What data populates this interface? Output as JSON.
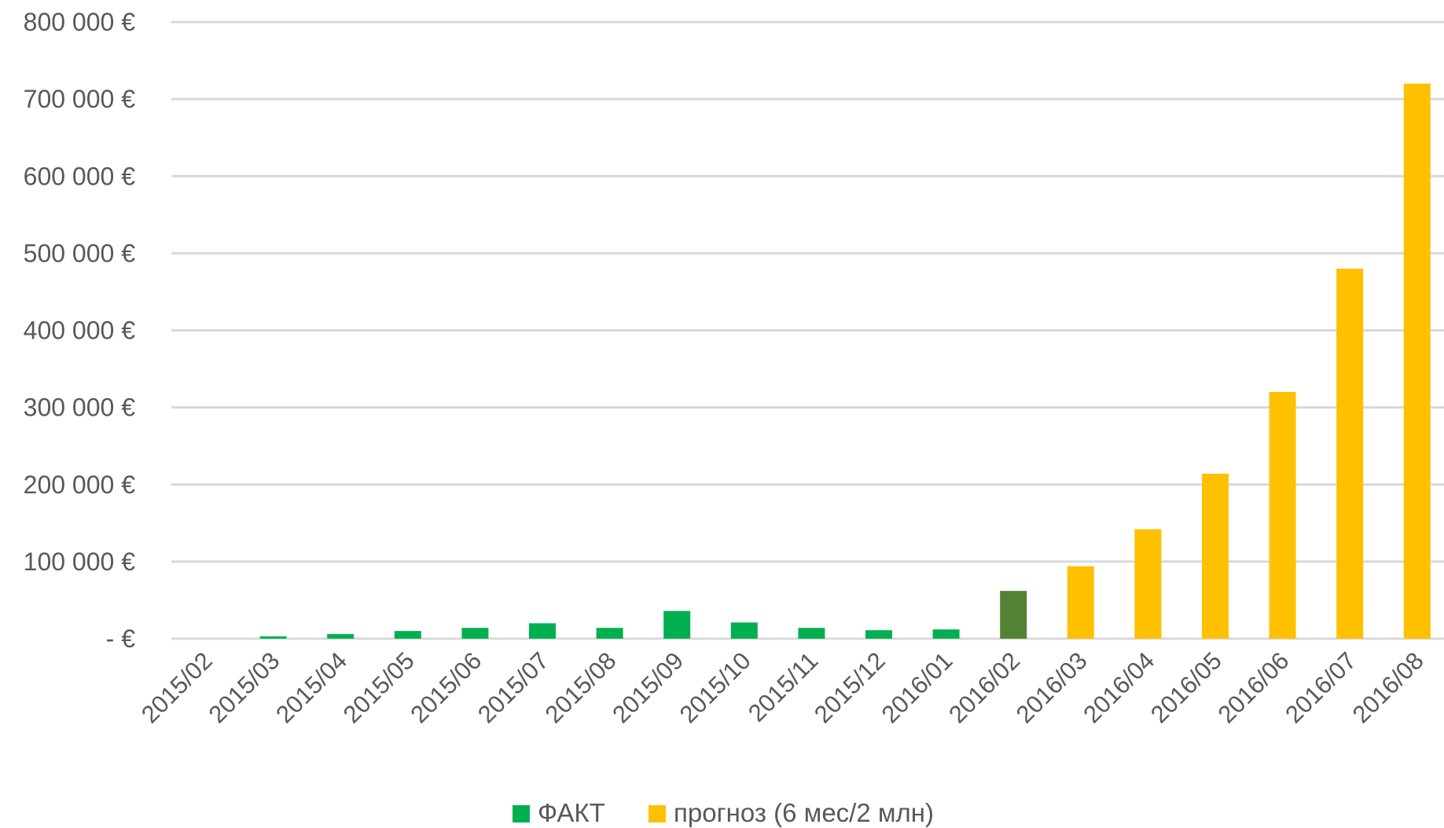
{
  "chart_data": {
    "type": "bar",
    "title": "",
    "xlabel": "",
    "ylabel": "",
    "ylim": [
      0,
      800000
    ],
    "yticks": [
      {
        "value": 0,
        "label": "- €"
      },
      {
        "value": 100000,
        "label": "100 000 €"
      },
      {
        "value": 200000,
        "label": "200 000 €"
      },
      {
        "value": 300000,
        "label": "300 000 €"
      },
      {
        "value": 400000,
        "label": "400 000 €"
      },
      {
        "value": 500000,
        "label": "500 000 €"
      },
      {
        "value": 600000,
        "label": "600 000 €"
      },
      {
        "value": 700000,
        "label": "700 000 €"
      },
      {
        "value": 800000,
        "label": "800 000 €"
      }
    ],
    "grid": true,
    "legend_position": "bottom",
    "categories": [
      "2015/02",
      "2015/03",
      "2015/04",
      "2015/05",
      "2015/06",
      "2015/07",
      "2015/08",
      "2015/09",
      "2015/10",
      "2015/11",
      "2015/12",
      "2016/01",
      "2016/02",
      "2016/03",
      "2016/04",
      "2016/05",
      "2016/06",
      "2016/07",
      "2016/08"
    ],
    "series": [
      {
        "name": "ФАКТ",
        "color": "#00b050",
        "highlight_color": "#548235",
        "highlight_index": 12,
        "values": [
          0,
          3000,
          6000,
          10000,
          14000,
          20000,
          14000,
          36000,
          21000,
          14000,
          11000,
          12000,
          62000,
          null,
          null,
          null,
          null,
          null,
          null
        ]
      },
      {
        "name": "прогноз (6 мес/2 млн)",
        "color": "#ffc000",
        "values": [
          null,
          null,
          null,
          null,
          null,
          null,
          null,
          null,
          null,
          null,
          null,
          null,
          null,
          94000,
          142000,
          214000,
          320000,
          480000,
          720000
        ]
      }
    ]
  }
}
